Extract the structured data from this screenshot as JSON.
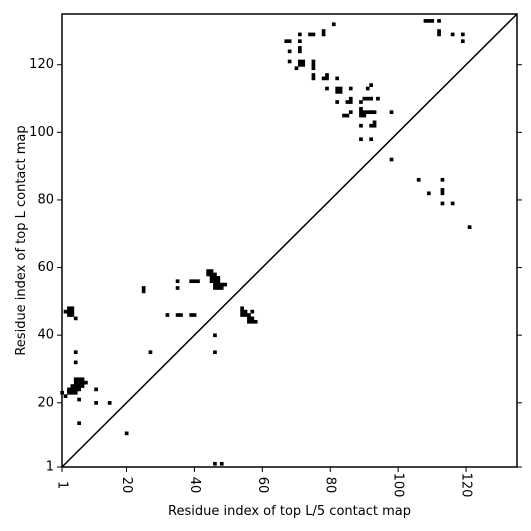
{
  "chart_data": {
    "type": "scatter",
    "title": "",
    "xlabel": "Residue index of top L/5 contact map",
    "ylabel": "Residue index of top L contact map",
    "xlim": [
      1,
      135
    ],
    "ylim": [
      1,
      135
    ],
    "xticks": [
      1,
      20,
      40,
      60,
      80,
      100,
      120
    ],
    "yticks": [
      1,
      20,
      40,
      60,
      80,
      100,
      120
    ],
    "grid": false,
    "diagonal": true,
    "marker": "square",
    "marker_color": "#000000",
    "series": [
      {
        "points": [
          [
            46,
            2
          ],
          [
            48,
            2
          ],
          [
            20,
            11
          ],
          [
            6,
            14
          ],
          [
            6,
            21
          ],
          [
            11,
            20
          ],
          [
            15,
            20
          ],
          [
            1,
            23
          ],
          [
            2,
            22
          ],
          [
            3,
            23
          ],
          [
            4,
            23
          ],
          [
            5,
            23
          ],
          [
            3,
            24
          ],
          [
            4,
            24
          ],
          [
            5,
            24
          ],
          [
            6,
            24
          ],
          [
            11,
            24
          ],
          [
            4,
            25
          ],
          [
            5,
            25
          ],
          [
            6,
            25
          ],
          [
            7,
            25
          ],
          [
            5,
            26
          ],
          [
            6,
            26
          ],
          [
            7,
            26
          ],
          [
            8,
            26
          ],
          [
            5,
            27
          ],
          [
            6,
            27
          ],
          [
            7,
            27
          ],
          [
            5,
            32
          ],
          [
            5,
            35
          ],
          [
            27,
            35
          ],
          [
            46,
            35
          ],
          [
            46,
            40
          ],
          [
            32,
            46
          ],
          [
            35,
            46
          ],
          [
            36,
            46
          ],
          [
            39,
            46
          ],
          [
            40,
            46
          ],
          [
            3,
            46
          ],
          [
            4,
            46
          ],
          [
            5,
            45
          ],
          [
            2,
            47
          ],
          [
            3,
            47
          ],
          [
            4,
            47
          ],
          [
            3,
            48
          ],
          [
            4,
            48
          ],
          [
            54,
            46
          ],
          [
            55,
            46
          ],
          [
            56,
            46
          ],
          [
            54,
            47
          ],
          [
            55,
            47
          ],
          [
            57,
            47
          ],
          [
            54,
            48
          ],
          [
            56,
            45
          ],
          [
            57,
            45
          ],
          [
            56,
            44
          ],
          [
            57,
            44
          ],
          [
            58,
            44
          ],
          [
            25,
            53
          ],
          [
            25,
            54
          ],
          [
            35,
            54
          ],
          [
            35,
            56
          ],
          [
            39,
            56
          ],
          [
            40,
            56
          ],
          [
            41,
            56
          ],
          [
            46,
            54
          ],
          [
            47,
            54
          ],
          [
            48,
            54
          ],
          [
            46,
            55
          ],
          [
            47,
            55
          ],
          [
            48,
            55
          ],
          [
            49,
            55
          ],
          [
            45,
            56
          ],
          [
            46,
            56
          ],
          [
            47,
            56
          ],
          [
            45,
            57
          ],
          [
            46,
            57
          ],
          [
            47,
            57
          ],
          [
            44,
            58
          ],
          [
            45,
            58
          ],
          [
            46,
            58
          ],
          [
            44,
            59
          ],
          [
            45,
            59
          ],
          [
            98,
            92
          ],
          [
            106,
            86
          ],
          [
            109,
            82
          ],
          [
            113,
            86
          ],
          [
            113,
            83
          ],
          [
            113,
            82
          ],
          [
            113,
            79
          ],
          [
            116,
            79
          ],
          [
            121,
            72
          ],
          [
            89,
            98
          ],
          [
            92,
            98
          ],
          [
            89,
            102
          ],
          [
            92,
            102
          ],
          [
            93,
            102
          ],
          [
            93,
            103
          ],
          [
            89,
            105
          ],
          [
            90,
            105
          ],
          [
            84,
            105
          ],
          [
            85,
            105
          ],
          [
            89,
            106
          ],
          [
            90,
            106
          ],
          [
            91,
            106
          ],
          [
            92,
            106
          ],
          [
            93,
            106
          ],
          [
            98,
            106
          ],
          [
            86,
            106
          ],
          [
            89,
            107
          ],
          [
            92,
            106
          ],
          [
            82,
            109
          ],
          [
            85,
            109
          ],
          [
            86,
            109
          ],
          [
            89,
            109
          ],
          [
            90,
            110
          ],
          [
            91,
            110
          ],
          [
            92,
            110
          ],
          [
            94,
            110
          ],
          [
            86,
            110
          ],
          [
            82,
            112
          ],
          [
            83,
            112
          ],
          [
            82,
            113
          ],
          [
            83,
            113
          ],
          [
            86,
            113
          ],
          [
            79,
            113
          ],
          [
            91,
            113
          ],
          [
            92,
            114
          ],
          [
            75,
            116
          ],
          [
            78,
            116
          ],
          [
            79,
            116
          ],
          [
            82,
            116
          ],
          [
            75,
            117
          ],
          [
            79,
            117
          ],
          [
            75,
            119
          ],
          [
            75,
            120
          ],
          [
            70,
            119
          ],
          [
            71,
            120
          ],
          [
            72,
            120
          ],
          [
            75,
            121
          ],
          [
            68,
            121
          ],
          [
            71,
            121
          ],
          [
            72,
            121
          ],
          [
            71,
            124
          ],
          [
            68,
            124
          ],
          [
            71,
            125
          ],
          [
            67,
            127
          ],
          [
            68,
            127
          ],
          [
            71,
            127
          ],
          [
            119,
            127
          ],
          [
            71,
            129
          ],
          [
            74,
            129
          ],
          [
            75,
            129
          ],
          [
            78,
            129
          ],
          [
            78,
            130
          ],
          [
            112,
            129
          ],
          [
            112,
            130
          ],
          [
            116,
            129
          ],
          [
            119,
            129
          ],
          [
            81,
            132
          ],
          [
            112,
            133
          ],
          [
            108,
            133
          ],
          [
            109,
            133
          ],
          [
            110,
            133
          ]
        ]
      }
    ]
  }
}
